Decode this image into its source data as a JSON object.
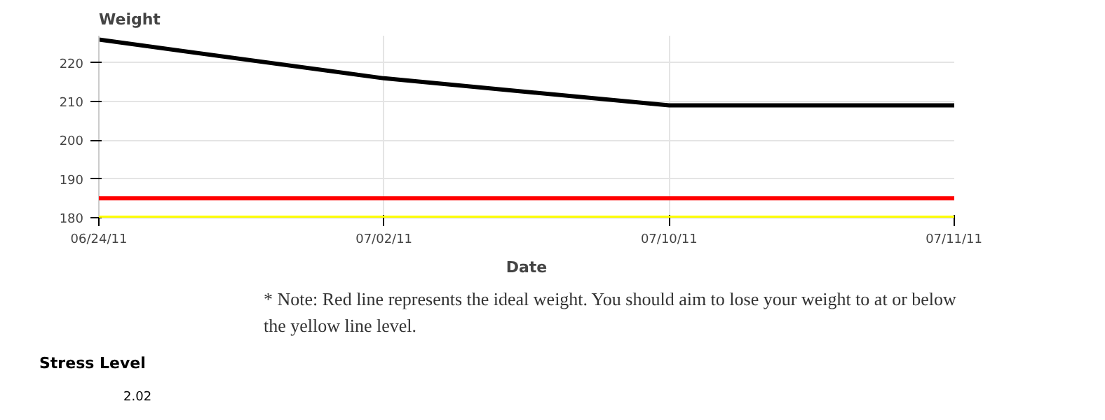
{
  "chart_data": [
    {
      "type": "line",
      "title": "Weight",
      "xlabel": "Date",
      "categories": [
        "06/24/11",
        "07/02/11",
        "07/10/11",
        "07/11/11"
      ],
      "series": [
        {
          "color": "#000000",
          "values": [
            226,
            216,
            209,
            209
          ]
        }
      ],
      "ylim": [
        180,
        227
      ],
      "yticks": [
        180,
        190,
        200,
        210,
        220
      ],
      "grid": true,
      "marker": "none",
      "line_style": "solid",
      "ref_lines": [
        {
          "axis": "y",
          "value": 185,
          "color": "#ff0000"
        },
        {
          "axis": "y",
          "value": 180,
          "color": "#ffff00"
        }
      ],
      "annotations": [
        "* Note: Red line represents the ideal weight. You should aim to lose your weight to at or below the yellow line level."
      ]
    },
    {
      "type": "other",
      "title": "Stress Level",
      "annotations": [
        "2.02"
      ]
    }
  ]
}
